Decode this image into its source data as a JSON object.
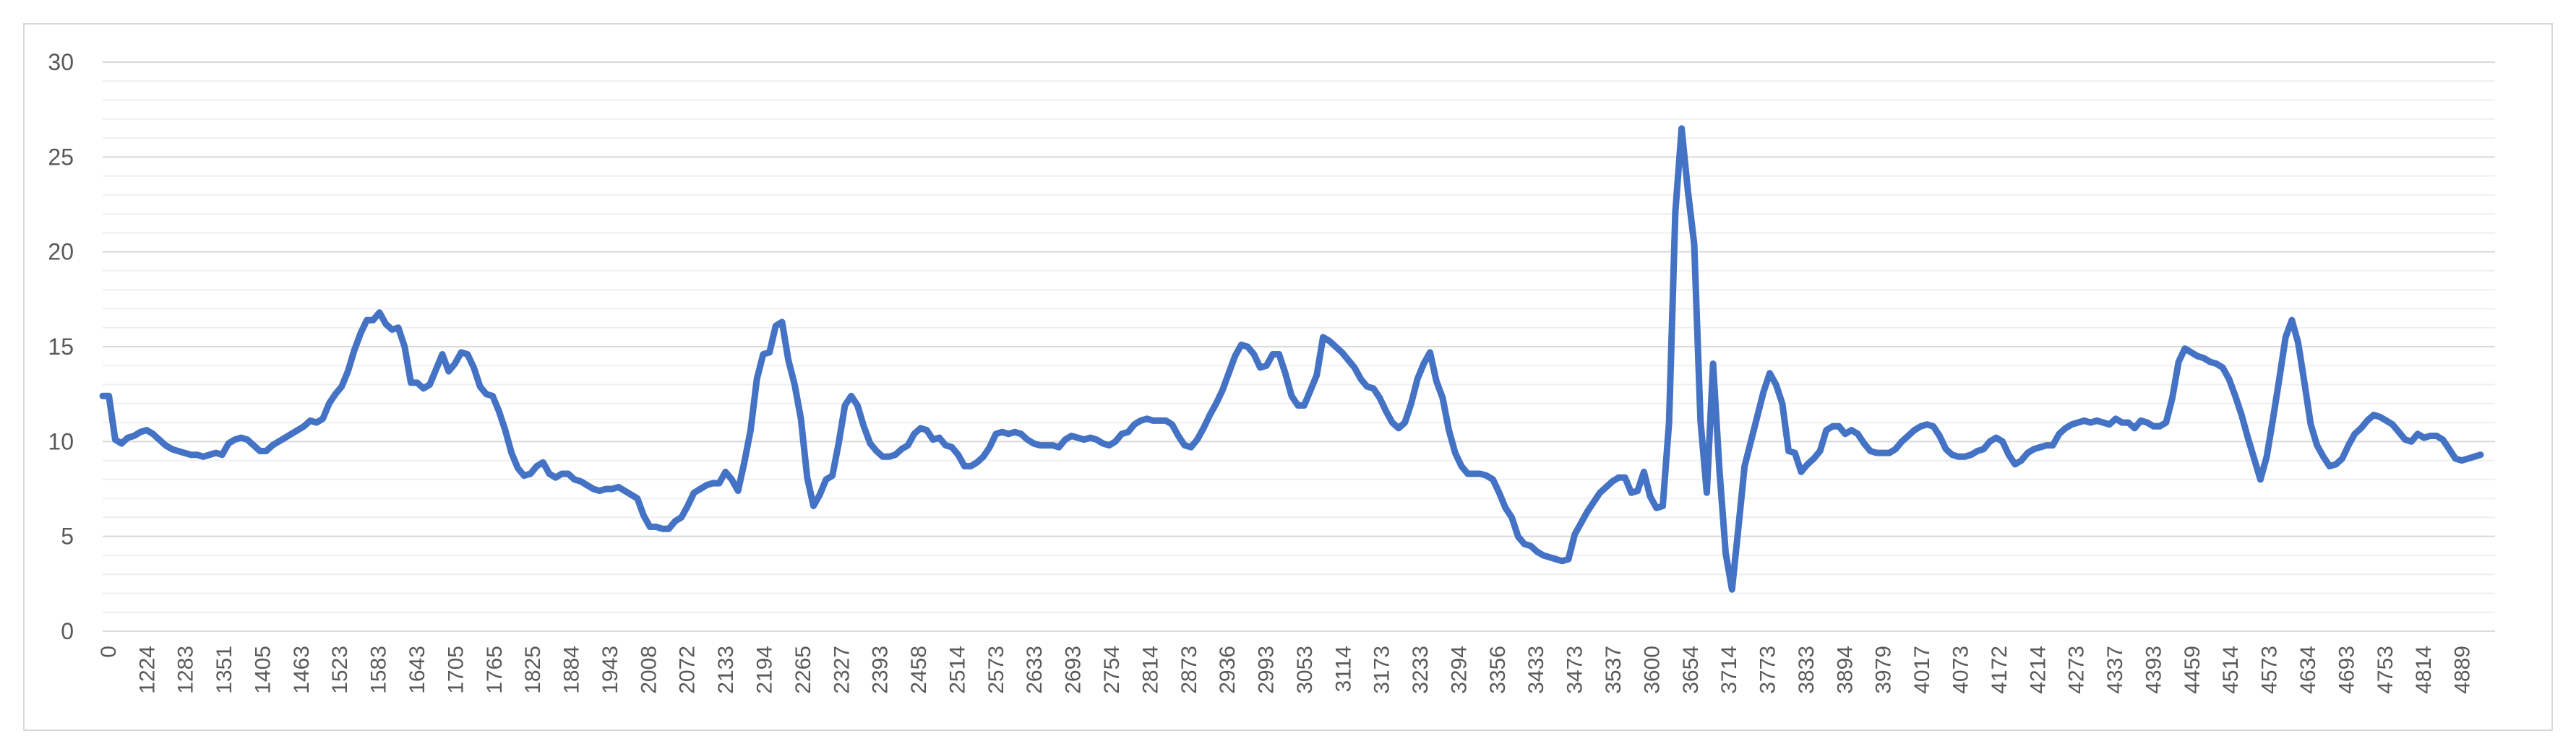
{
  "chart_data": {
    "type": "line",
    "title": "",
    "xlabel": "",
    "ylabel": "",
    "ylim": [
      0,
      30
    ],
    "y_ticks": [
      "0",
      "5",
      "10",
      "15",
      "20",
      "25",
      "30"
    ],
    "grid": true,
    "minor_grid": true,
    "legend": "none",
    "x_tick_labels": [
      "0",
      "1224",
      "1283",
      "1351",
      "1405",
      "1463",
      "1523",
      "1583",
      "1643",
      "1705",
      "1765",
      "1825",
      "1884",
      "1943",
      "2008",
      "2072",
      "2133",
      "2194",
      "2265",
      "2327",
      "2393",
      "2458",
      "2514",
      "2573",
      "2633",
      "2693",
      "2754",
      "2814",
      "2873",
      "2936",
      "2993",
      "3053",
      "3114",
      "3173",
      "3233",
      "3294",
      "3356",
      "3433",
      "3473",
      "3537",
      "3600",
      "3654",
      "3714",
      "3773",
      "3833",
      "3894",
      "3979",
      "4017",
      "4073",
      "4172",
      "4214",
      "4273",
      "4337",
      "4393",
      "4459",
      "4514",
      "4573",
      "4634",
      "4693",
      "4753",
      "4814",
      "4889"
    ],
    "series": [
      {
        "color": "#4472c4",
        "values": [
          12.4,
          12.4,
          10.1,
          9.9,
          10.2,
          10.3,
          10.5,
          10.6,
          10.4,
          10.1,
          9.8,
          9.6,
          9.5,
          9.4,
          9.3,
          9.3,
          9.2,
          9.3,
          9.4,
          9.3,
          9.9,
          10.1,
          10.2,
          10.1,
          9.8,
          9.5,
          9.5,
          9.8,
          10.0,
          10.2,
          10.4,
          10.6,
          10.8,
          11.1,
          11.0,
          11.2,
          12.0,
          12.5,
          12.9,
          13.7,
          14.8,
          15.7,
          16.4,
          16.4,
          16.8,
          16.2,
          15.9,
          16.0,
          15.0,
          13.1,
          13.1,
          12.8,
          13.0,
          13.8,
          14.6,
          13.7,
          14.1,
          14.7,
          14.6,
          13.9,
          12.9,
          12.5,
          12.4,
          11.6,
          10.6,
          9.4,
          8.6,
          8.2,
          8.3,
          8.7,
          8.9,
          8.3,
          8.1,
          8.3,
          8.3,
          8.0,
          7.9,
          7.7,
          7.5,
          7.4,
          7.5,
          7.5,
          7.6,
          7.4,
          7.2,
          7.0,
          6.1,
          5.5,
          5.5,
          5.4,
          5.4,
          5.8,
          6.0,
          6.6,
          7.3,
          7.5,
          7.7,
          7.8,
          7.8,
          8.4,
          8.0,
          7.4,
          8.9,
          10.6,
          13.3,
          14.6,
          14.7,
          16.1,
          16.3,
          14.3,
          13.0,
          11.2,
          8.1,
          6.6,
          7.2,
          8.0,
          8.2,
          9.9,
          11.9,
          12.4,
          11.9,
          10.8,
          9.9,
          9.5,
          9.2,
          9.2,
          9.3,
          9.6,
          9.8,
          10.4,
          10.7,
          10.6,
          10.1,
          10.2,
          9.8,
          9.7,
          9.3,
          8.7,
          8.7,
          8.9,
          9.2,
          9.7,
          10.4,
          10.5,
          10.4,
          10.5,
          10.4,
          10.1,
          9.9,
          9.8,
          9.8,
          9.8,
          9.7,
          10.1,
          10.3,
          10.2,
          10.1,
          10.2,
          10.1,
          9.9,
          9.8,
          10.0,
          10.4,
          10.5,
          10.9,
          11.1,
          11.2,
          11.1,
          11.1,
          11.1,
          10.9,
          10.3,
          9.8,
          9.7,
          10.1,
          10.7,
          11.4,
          12.0,
          12.7,
          13.6,
          14.5,
          15.1,
          15.0,
          14.6,
          13.9,
          14.0,
          14.6,
          14.6,
          13.6,
          12.4,
          11.9,
          11.9,
          12.7,
          13.5,
          15.5,
          15.3,
          15.0,
          14.7,
          14.3,
          13.9,
          13.3,
          12.9,
          12.8,
          12.3,
          11.6,
          11.0,
          10.7,
          11.0,
          12.0,
          13.3,
          14.1,
          14.7,
          13.2,
          12.3,
          10.6,
          9.4,
          8.7,
          8.3,
          8.3,
          8.3,
          8.2,
          8.0,
          7.3,
          6.5,
          6.0,
          5.0,
          4.6,
          4.5,
          4.2,
          4.0,
          3.9,
          3.8,
          3.7,
          3.8,
          5.1,
          5.7,
          6.3,
          6.8,
          7.3,
          7.6,
          7.9,
          8.1,
          8.1,
          7.3,
          7.4,
          8.4,
          7.1,
          6.5,
          6.6,
          11.0,
          22.1,
          26.5,
          23.2,
          20.4,
          11.1,
          7.3,
          14.1,
          8.5,
          4.1,
          2.2,
          5.4,
          8.7,
          10.0,
          11.3,
          12.6,
          13.6,
          13.0,
          12.0,
          9.5,
          9.4,
          8.4,
          8.8,
          9.1,
          9.5,
          10.6,
          10.8,
          10.8,
          10.4,
          10.6,
          10.4,
          9.9,
          9.5,
          9.4,
          9.4,
          9.4,
          9.6,
          10.0,
          10.3,
          10.6,
          10.8,
          10.9,
          10.8,
          10.3,
          9.6,
          9.3,
          9.2,
          9.2,
          9.3,
          9.5,
          9.6,
          10.0,
          10.2,
          10.0,
          9.3,
          8.8,
          9.0,
          9.4,
          9.6,
          9.7,
          9.8,
          9.8,
          10.4,
          10.7,
          10.9,
          11.0,
          11.1,
          11.0,
          11.1,
          11.0,
          10.9,
          11.2,
          11.0,
          11.0,
          10.7,
          11.1,
          11.0,
          10.8,
          10.8,
          11.0,
          12.3,
          14.2,
          14.9,
          14.7,
          14.5,
          14.4,
          14.2,
          14.1,
          13.9,
          13.3,
          12.4,
          11.4,
          10.2,
          9.1,
          8.0,
          9.2,
          11.2,
          13.3,
          15.5,
          16.4,
          15.2,
          13.1,
          10.9,
          9.8,
          9.2,
          8.7,
          8.8,
          9.1,
          9.8,
          10.4,
          10.7,
          11.1,
          11.4,
          11.3,
          11.1,
          10.9,
          10.5,
          10.1,
          10.0,
          10.4,
          10.2,
          10.3,
          10.3,
          10.1,
          9.6,
          9.1,
          9.0,
          9.1,
          9.2,
          9.3
        ]
      }
    ]
  }
}
